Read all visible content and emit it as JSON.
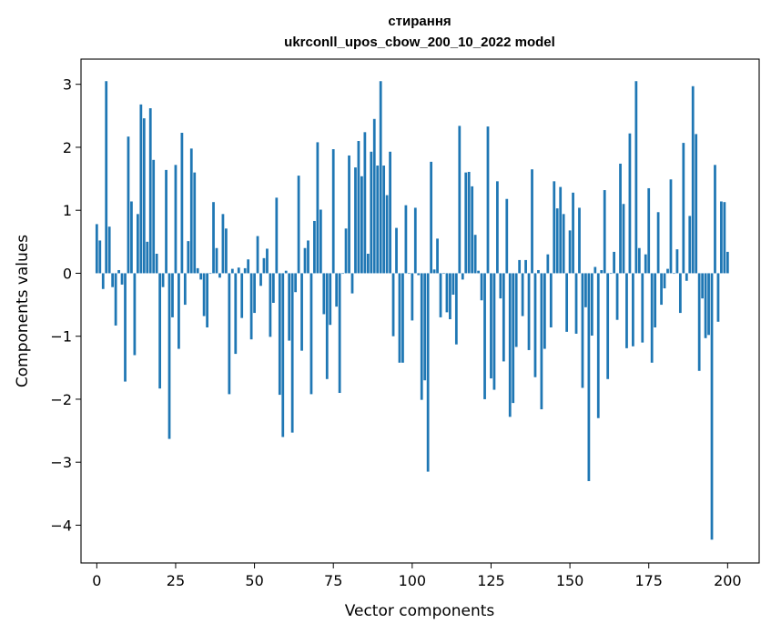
{
  "chart_data": {
    "type": "bar",
    "title_line1": "стирання",
    "title_line2": "ukrconll_upos_cbow_200_10_2022 model",
    "xlabel": "Vector components",
    "ylabel": "Components values",
    "xlim": [
      -5,
      210
    ],
    "ylim": [
      -4.6,
      3.4
    ],
    "xticks": [
      0,
      25,
      50,
      75,
      100,
      125,
      150,
      175,
      200
    ],
    "xtick_labels": [
      "0",
      "25",
      "50",
      "75",
      "100",
      "125",
      "150",
      "175",
      "200"
    ],
    "yticks": [
      3,
      2,
      1,
      0,
      -1,
      -2,
      -3,
      -4
    ],
    "ytick_labels": [
      "3",
      "2",
      "1",
      "0",
      "−1",
      "−2",
      "−3",
      "−4"
    ],
    "bar_color": "#1f77b4",
    "values": [
      0.78,
      0.52,
      -0.25,
      3.05,
      0.74,
      -0.22,
      -0.83,
      0.05,
      -0.18,
      -1.72,
      2.17,
      1.14,
      -1.3,
      0.94,
      2.68,
      2.46,
      0.5,
      2.62,
      1.8,
      0.31,
      -1.83,
      -0.22,
      1.64,
      -2.63,
      -0.7,
      1.72,
      -1.2,
      2.23,
      -0.5,
      0.51,
      1.98,
      1.6,
      0.08,
      -0.1,
      -0.68,
      -0.86,
      0.0,
      1.13,
      0.4,
      -0.07,
      0.94,
      0.71,
      -1.92,
      0.07,
      -1.28,
      0.09,
      -0.71,
      0.08,
      0.22,
      -1.05,
      -0.63,
      0.59,
      -0.2,
      0.24,
      0.39,
      -1.01,
      -0.47,
      1.2,
      -1.93,
      -2.6,
      0.04,
      -1.07,
      -2.53,
      -0.3,
      1.55,
      -1.23,
      0.4,
      0.52,
      -1.92,
      0.83,
      2.08,
      1.01,
      -0.65,
      -1.68,
      -0.82,
      1.97,
      -0.53,
      -1.9,
      0.0,
      0.71,
      1.87,
      -0.32,
      1.68,
      2.1,
      1.54,
      2.24,
      0.31,
      1.93,
      2.45,
      1.71,
      3.05,
      1.71,
      1.24,
      1.93,
      -1.0,
      0.72,
      -1.42,
      -1.42,
      1.08,
      0.0,
      -0.75,
      1.04,
      -0.03,
      -2.01,
      -1.7,
      -3.15,
      1.77,
      0.06,
      0.55,
      -0.7,
      0.0,
      -0.62,
      -0.73,
      -0.34,
      -1.13,
      2.34,
      -0.1,
      1.6,
      1.61,
      1.38,
      0.61,
      0.04,
      -0.43,
      -2.0,
      2.33,
      -1.67,
      -1.85,
      1.46,
      -0.4,
      -1.4,
      1.18,
      -2.28,
      -2.06,
      -1.17,
      0.21,
      -0.68,
      0.21,
      -1.22,
      1.65,
      -1.65,
      0.05,
      -2.16,
      -1.2,
      0.3,
      -0.86,
      1.46,
      1.03,
      1.37,
      0.94,
      -0.93,
      0.68,
      1.28,
      -0.96,
      1.04,
      -1.82,
      -0.54,
      -3.3,
      -0.99,
      0.1,
      -2.3,
      0.05,
      1.32,
      -1.68,
      0.0,
      0.34,
      -0.74,
      1.74,
      1.1,
      -1.19,
      2.22,
      -1.16,
      3.05,
      0.4,
      -1.1,
      0.3,
      1.35,
      -1.42,
      -0.86,
      0.97,
      -0.5,
      -0.24,
      0.07,
      1.49,
      0.0,
      0.38,
      -0.63,
      2.07,
      -0.12,
      0.91,
      2.97,
      2.21,
      -1.55,
      -0.4,
      -1.03,
      -0.98,
      -4.23,
      1.72,
      -0.77,
      1.14,
      1.13,
      0.34
    ]
  }
}
